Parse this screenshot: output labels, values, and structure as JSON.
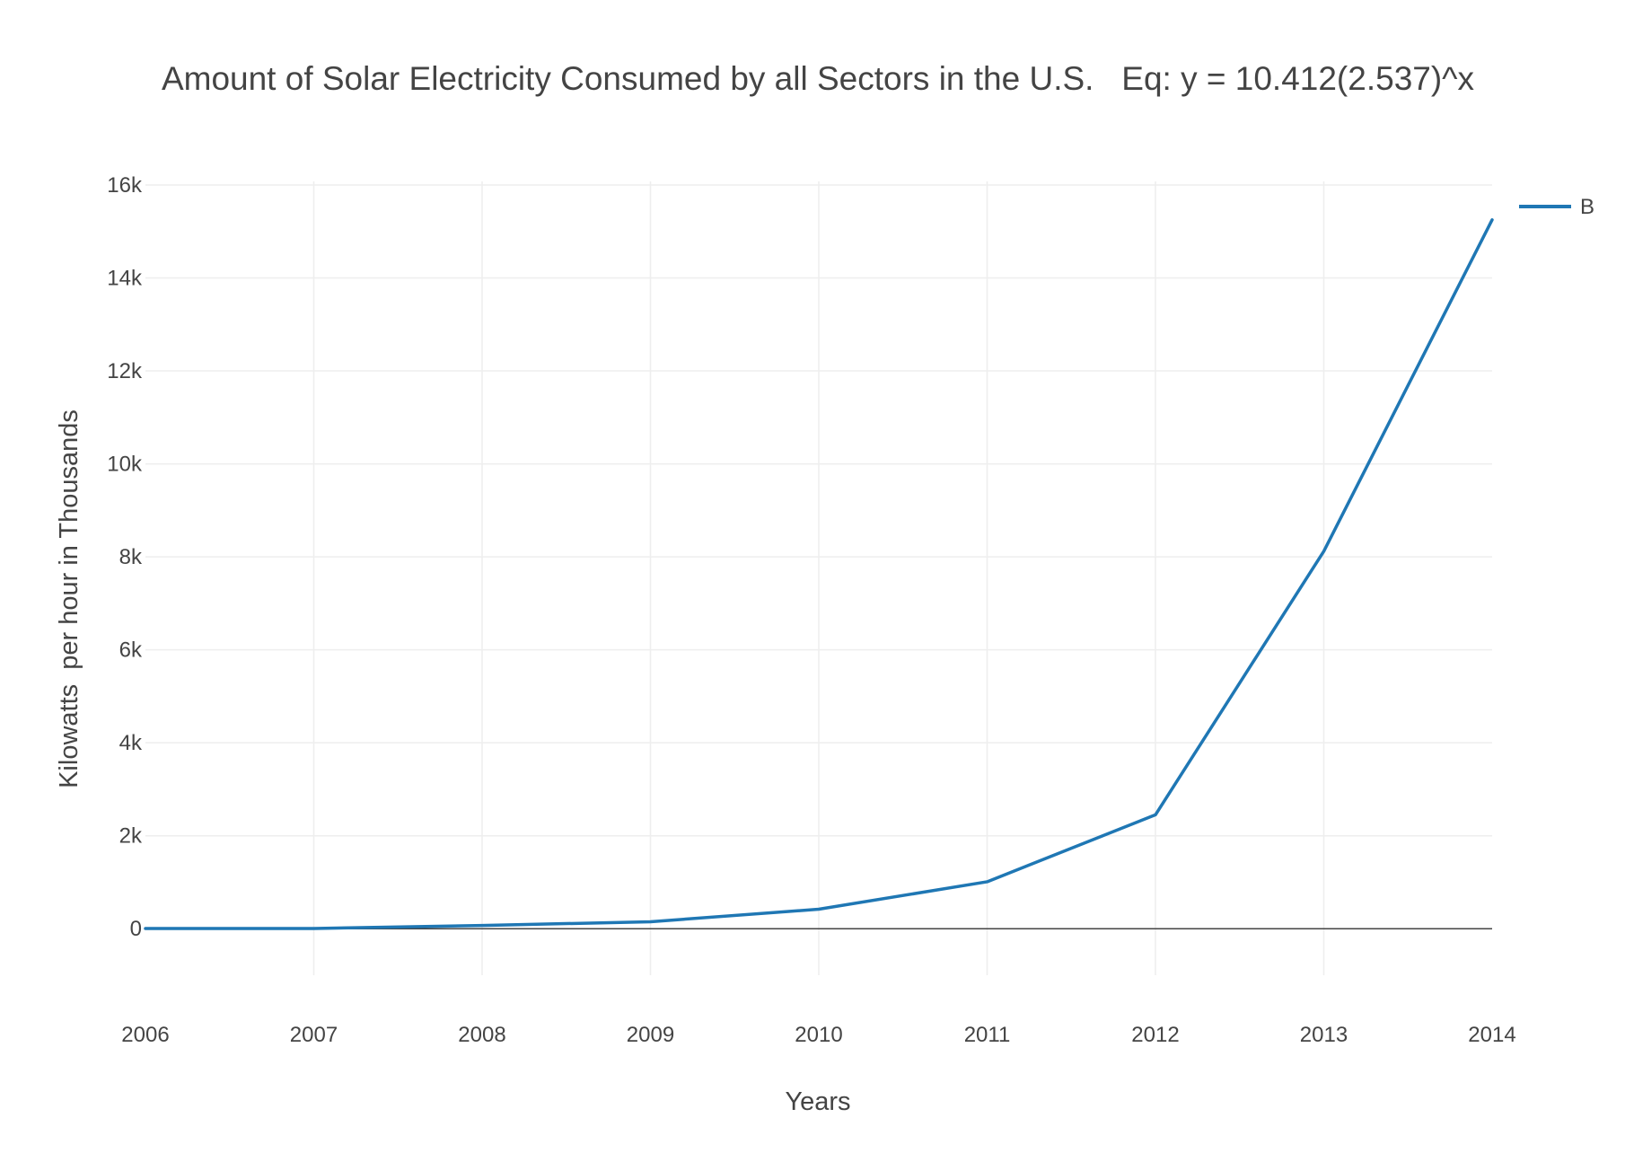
{
  "chart_data": {
    "type": "line",
    "title": "Amount of Solar Electricity Consumed by all Sectors in the U.S.   Eq: y = 10.412(2.537)^x",
    "xlabel": "Years",
    "ylabel": "Kilowatts  per hour in Thousands",
    "x": [
      2006,
      2007,
      2008,
      2009,
      2010,
      2011,
      2012,
      2013,
      2014
    ],
    "xlim": [
      2006,
      2014
    ],
    "ylim": [
      -1000,
      16000
    ],
    "xticks": [
      "2006",
      "2007",
      "2008",
      "2009",
      "2010",
      "2011",
      "2012",
      "2013",
      "2014"
    ],
    "yticks": [
      {
        "value": 0,
        "label": "0"
      },
      {
        "value": 2000,
        "label": "2k"
      },
      {
        "value": 4000,
        "label": "4k"
      },
      {
        "value": 6000,
        "label": "6k"
      },
      {
        "value": 8000,
        "label": "8k"
      },
      {
        "value": 10000,
        "label": "10k"
      },
      {
        "value": 12000,
        "label": "12k"
      },
      {
        "value": 14000,
        "label": "14k"
      },
      {
        "value": 16000,
        "label": "16k"
      }
    ],
    "grid": true,
    "legend_position": "top-right",
    "series": [
      {
        "name": "B",
        "color": "#1f77b4",
        "values": [
          5,
          5,
          70,
          150,
          420,
          1010,
          2450,
          8120,
          15250
        ]
      }
    ]
  }
}
